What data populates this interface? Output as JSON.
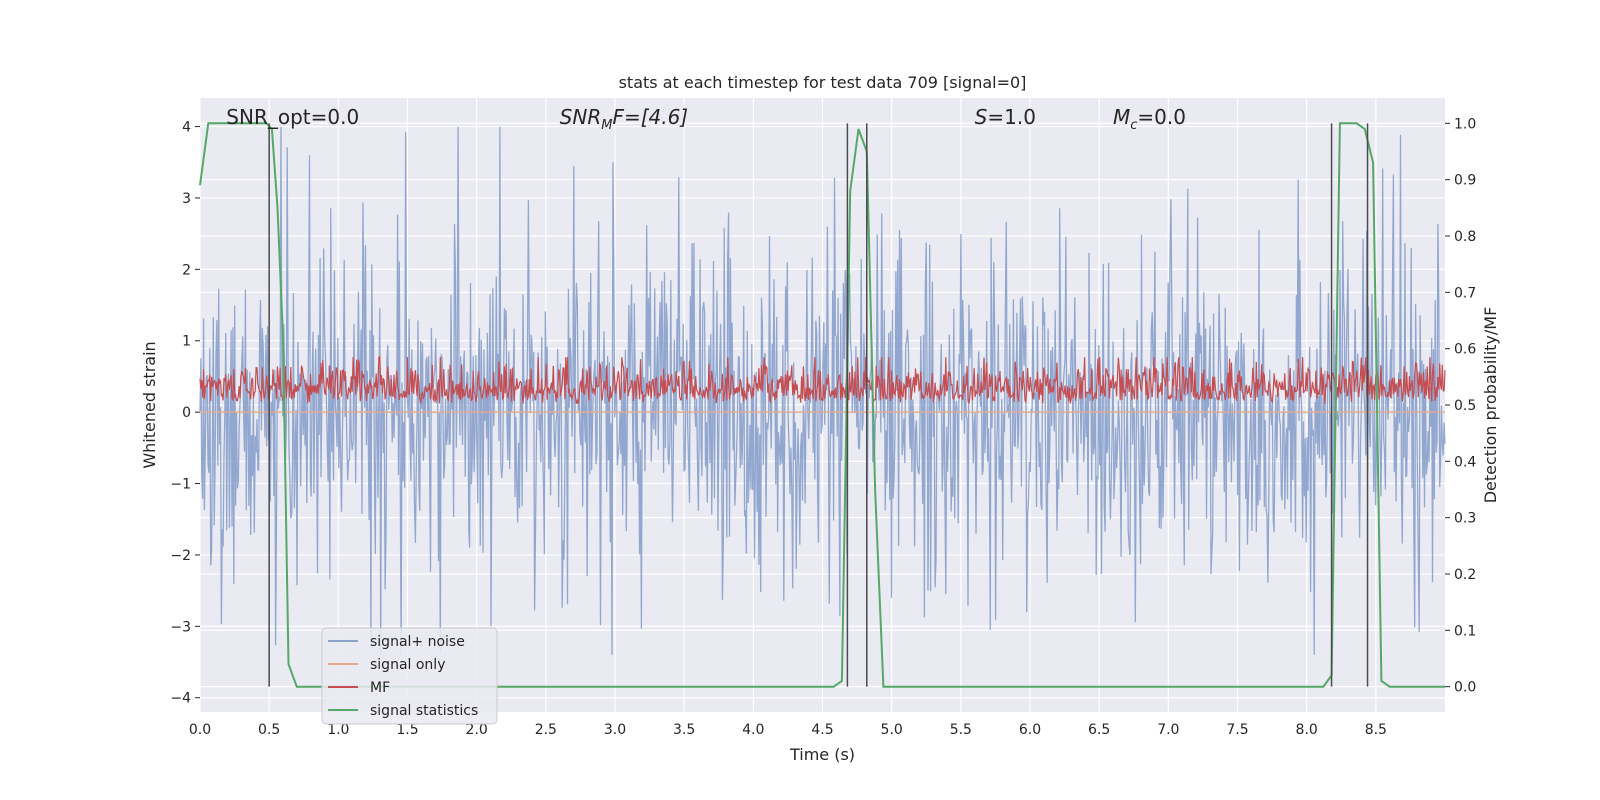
{
  "chart_data": {
    "type": "line",
    "title": "stats at each timestep for test data 709 [signal=0]",
    "xlabel": "Time (s)",
    "ylabel": "Whitened strain",
    "ylabel_right": "Detection probability/MF",
    "xlim": [
      0.0,
      9.0
    ],
    "ylim": [
      -4.2,
      4.4
    ],
    "ylim_right": [
      -0.045,
      1.045
    ],
    "x_ticks": [
      "0.0",
      "0.5",
      "1.0",
      "1.5",
      "2.0",
      "2.5",
      "3.0",
      "3.5",
      "4.0",
      "4.5",
      "5.0",
      "5.5",
      "6.0",
      "6.5",
      "7.0",
      "7.5",
      "8.0",
      "8.5"
    ],
    "y_ticks": [
      "−4",
      "−3",
      "−2",
      "−1",
      "0",
      "1",
      "2",
      "3",
      "4"
    ],
    "y_ticks_right": [
      "0.0",
      "0.1",
      "0.2",
      "0.3",
      "0.4",
      "0.5",
      "0.6",
      "0.7",
      "0.8",
      "0.9",
      "1.0"
    ],
    "grid": true,
    "colors": {
      "background": "#eaeaf2",
      "grid": "#ffffff",
      "signal_noise": "#8da3cc",
      "signal_only": "#e8a88c",
      "mf": "#c44e52",
      "stats": "#55a868",
      "vline": "#4c4c4c"
    },
    "annotations": {
      "snr_opt": "SNR_opt=0.0",
      "snr_mf_main": "SNR",
      "snr_mf_sub": "M",
      "snr_mf_rest": "F=[4.6]",
      "s_main": "S",
      "s_rest": "=1.0",
      "mc_main": "M",
      "mc_sub": "c",
      "mc_rest": "=0.0"
    },
    "legend": {
      "placement": "lower-left",
      "entries": [
        "signal+ noise",
        "signal only",
        "MF",
        "signal statistics"
      ]
    },
    "vertical_lines_x": [
      0.5,
      4.68,
      4.82,
      8.18,
      8.44
    ],
    "series": [
      {
        "name": "signal statistics",
        "axis": "right",
        "x": [
          0.0,
          0.06,
          0.12,
          0.2,
          0.3,
          0.4,
          0.48,
          0.52,
          0.56,
          0.6,
          0.64,
          0.7,
          0.8,
          1.0,
          1.5,
          2.0,
          2.5,
          3.0,
          3.5,
          4.0,
          4.5,
          4.58,
          4.64,
          4.7,
          4.76,
          4.82,
          4.88,
          4.94,
          5.0,
          5.5,
          6.0,
          6.5,
          7.0,
          7.5,
          8.0,
          8.12,
          8.18,
          8.24,
          8.3,
          8.36,
          8.42,
          8.48,
          8.54,
          8.6,
          8.7,
          8.8,
          8.9,
          9.0
        ],
        "y": [
          0.89,
          1.0,
          1.0,
          1.0,
          1.0,
          1.0,
          1.0,
          0.99,
          0.85,
          0.62,
          0.04,
          0.0,
          0.0,
          0.0,
          0.0,
          0.0,
          0.0,
          0.0,
          0.0,
          0.0,
          0.0,
          0.0,
          0.01,
          0.88,
          0.99,
          0.95,
          0.35,
          0.0,
          0.0,
          0.0,
          0.0,
          0.0,
          0.0,
          0.0,
          0.0,
          0.0,
          0.02,
          1.0,
          1.0,
          1.0,
          0.99,
          0.93,
          0.01,
          0.0,
          0.0,
          0.0,
          0.0,
          0.0
        ]
      },
      {
        "name": "signal+ noise",
        "axis": "left",
        "generated": "dense noise trace between about -3.4 and 4.0 strain",
        "n_samples": 1400,
        "amplitude": 1.5
      },
      {
        "name": "MF",
        "axis": "right",
        "generated": "dense trace between about 0.49 and 0.58",
        "n_samples": 1400,
        "base": 0.5,
        "amplitude": 0.06
      },
      {
        "name": "signal only",
        "axis": "left",
        "values_constant": 0.0
      }
    ]
  }
}
